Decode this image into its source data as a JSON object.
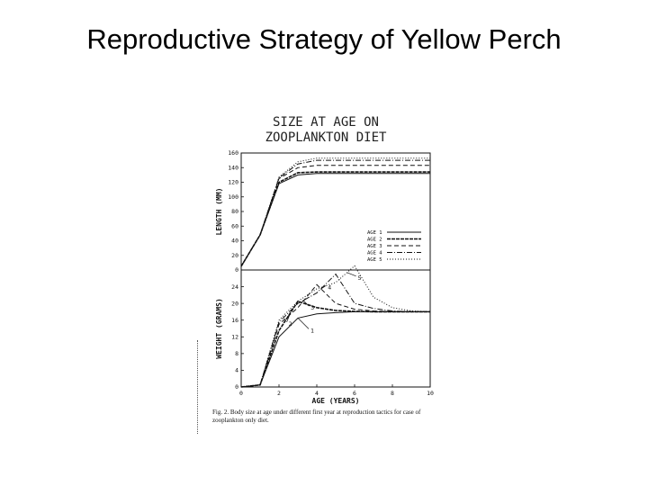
{
  "slide": {
    "title": "Reproductive Strategy of Yellow Perch"
  },
  "figure": {
    "title_line1": "SIZE AT AGE ON",
    "title_line2": "ZOOPLANKTON DIET",
    "caption": "Fig. 2. Body size at age under different first year at reproduction tactics for case of zooplankton only diet."
  },
  "chart_data": [
    {
      "type": "line",
      "panel": "top",
      "ylabel": "LENGTH (MM)",
      "xlabel": "",
      "xlim": [
        0,
        10
      ],
      "ylim": [
        0,
        160
      ],
      "yticks": [
        0,
        20,
        40,
        60,
        80,
        100,
        120,
        140,
        160
      ],
      "legend_position": "right",
      "series": [
        {
          "name": "AGE 1",
          "dash": "",
          "x": [
            0,
            1,
            2,
            3,
            4,
            5,
            6,
            7,
            8,
            9,
            10
          ],
          "values": [
            5,
            48,
            118,
            130,
            132,
            132,
            132,
            132,
            132,
            132,
            132
          ]
        },
        {
          "name": "AGE 2",
          "dash": "4,1",
          "x": [
            0,
            1,
            2,
            3,
            4,
            5,
            6,
            7,
            8,
            9,
            10
          ],
          "values": [
            5,
            48,
            120,
            133,
            134,
            134,
            134,
            134,
            134,
            134,
            134
          ]
        },
        {
          "name": "AGE 3",
          "dash": "5,3",
          "x": [
            0,
            1,
            2,
            3,
            4,
            5,
            6,
            7,
            8,
            9,
            10
          ],
          "values": [
            5,
            48,
            125,
            140,
            143,
            143,
            143,
            143,
            143,
            143,
            143
          ]
        },
        {
          "name": "AGE 4",
          "dash": "6,2,1,2",
          "x": [
            0,
            1,
            2,
            3,
            4,
            5,
            6,
            7,
            8,
            9,
            10
          ],
          "values": [
            5,
            48,
            126,
            145,
            150,
            150,
            150,
            150,
            150,
            150,
            150
          ]
        },
        {
          "name": "AGE 5",
          "dash": "1,2",
          "x": [
            0,
            1,
            2,
            3,
            4,
            5,
            6,
            7,
            8,
            9,
            10
          ],
          "values": [
            5,
            48,
            127,
            148,
            153,
            153,
            153,
            153,
            153,
            153,
            153
          ]
        }
      ]
    },
    {
      "type": "line",
      "panel": "bottom",
      "ylabel": "WEIGHT (GRAMS)",
      "xlabel": "AGE (YEARS)",
      "xlim": [
        0,
        10
      ],
      "ylim": [
        0,
        28
      ],
      "yticks": [
        0,
        4,
        8,
        12,
        16,
        20,
        24
      ],
      "xticks": [
        0,
        2,
        4,
        6,
        8,
        10
      ],
      "series": [
        {
          "name": "1",
          "dash": "",
          "x": [
            0,
            1,
            2,
            3,
            4,
            5,
            6,
            7,
            8,
            9,
            10
          ],
          "values": [
            0,
            0.5,
            12,
            16.5,
            17.5,
            17.8,
            18,
            18,
            18,
            18,
            18
          ]
        },
        {
          "name": "2",
          "dash": "4,1",
          "x": [
            0,
            1,
            2,
            3,
            4,
            5,
            6,
            7,
            8,
            9,
            10
          ],
          "values": [
            0,
            0.5,
            13.5,
            20.5,
            19,
            18.3,
            18.1,
            18,
            18,
            18,
            18
          ]
        },
        {
          "name": "3",
          "dash": "5,3",
          "x": [
            0,
            1,
            2,
            3,
            4,
            5,
            6,
            7,
            8,
            9,
            10
          ],
          "values": [
            0,
            0.5,
            15,
            19,
            24.5,
            20,
            18.6,
            18.2,
            18,
            18,
            18
          ]
        },
        {
          "name": "4",
          "dash": "6,2,1,2",
          "x": [
            0,
            1,
            2,
            3,
            4,
            5,
            6,
            7,
            8,
            9,
            10
          ],
          "values": [
            0,
            0.5,
            15.5,
            20,
            22.5,
            27,
            20,
            18.8,
            18.2,
            18,
            18
          ]
        },
        {
          "name": "5",
          "dash": "1,2",
          "x": [
            0,
            1,
            2,
            3,
            4,
            5,
            6,
            7,
            8,
            9,
            10
          ],
          "values": [
            0,
            0.5,
            16,
            20.5,
            23.5,
            25,
            29,
            21.5,
            19,
            18.2,
            18
          ]
        }
      ]
    }
  ]
}
